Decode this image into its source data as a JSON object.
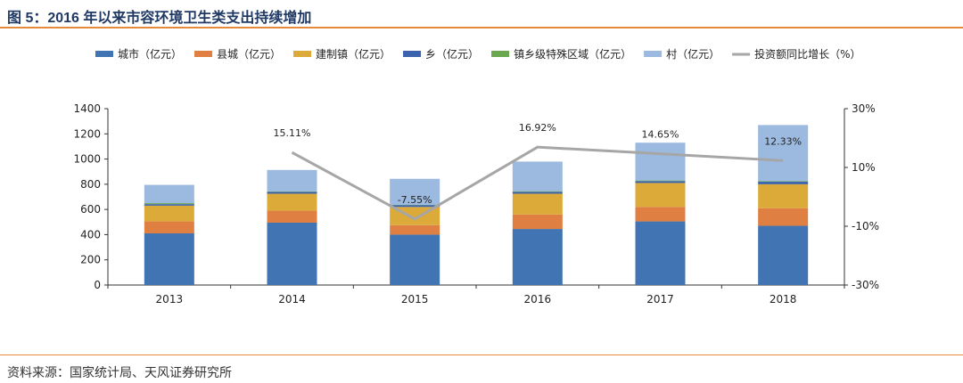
{
  "title": "图 5：2016 年以来市容环境卫生类支出持续增加",
  "source": "资料来源：国家统计局、天风证券研究所",
  "chart_data": {
    "type": "bar",
    "stacked": true,
    "categories": [
      "2013",
      "2014",
      "2015",
      "2016",
      "2017",
      "2018"
    ],
    "series": [
      {
        "name": "城市（亿元）",
        "color": "#4074b2",
        "values": [
          410,
          495,
          400,
          445,
          505,
          470
        ]
      },
      {
        "name": "县城（亿元）",
        "color": "#e07f42",
        "values": [
          95,
          95,
          75,
          115,
          115,
          140
        ]
      },
      {
        "name": "建制镇（亿元）",
        "color": "#dcaa38",
        "values": [
          125,
          135,
          145,
          165,
          190,
          190
        ]
      },
      {
        "name": "乡（亿元）",
        "color": "#3a62ad",
        "values": [
          12,
          15,
          15,
          15,
          15,
          20
        ]
      },
      {
        "name": "镇乡级特殊区域（亿元）",
        "color": "#6aa84f",
        "values": [
          8,
          3,
          3,
          5,
          5,
          5
        ]
      },
      {
        "name": "村（亿元）",
        "color": "#9cb9df",
        "values": [
          145,
          170,
          205,
          235,
          300,
          445
        ]
      }
    ],
    "line": {
      "name": "投资额同比增长（%）",
      "color": "#a6a6a6",
      "values": [
        null,
        15.11,
        -7.55,
        16.92,
        14.65,
        12.33
      ],
      "labels": [
        "",
        "15.11%",
        "-7.55%",
        "16.92%",
        "14.65%",
        "12.33%"
      ]
    },
    "ylim": [
      0,
      1400
    ],
    "yticks": [
      "0",
      "200",
      "400",
      "600",
      "800",
      "1000",
      "1200",
      "1400"
    ],
    "y2lim": [
      -30,
      30
    ],
    "y2ticks": [
      "-30%",
      "-10%",
      "10%",
      "30%"
    ],
    "grid": false,
    "legend": "top"
  }
}
